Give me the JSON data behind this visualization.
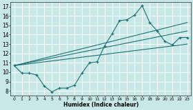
{
  "xlabel": "Humidex (Indice chaleur)",
  "xlim": [
    -0.5,
    23.5
  ],
  "ylim": [
    7.5,
    17.5
  ],
  "xticks": [
    0,
    1,
    2,
    3,
    4,
    5,
    6,
    7,
    8,
    9,
    10,
    11,
    12,
    13,
    14,
    15,
    16,
    17,
    18,
    19,
    20,
    21,
    22,
    23
  ],
  "yticks": [
    8,
    9,
    10,
    11,
    12,
    13,
    14,
    15,
    16,
    17
  ],
  "bg_color": "#c8e8e8",
  "grid_color": "#ffffff",
  "line_color": "#1a7070",
  "line_main": {
    "x": [
      0,
      1,
      2,
      3,
      4,
      5,
      6,
      7,
      8,
      9,
      10,
      11,
      12,
      13,
      14,
      15,
      16,
      17,
      18,
      19,
      20,
      21,
      22,
      23
    ],
    "y": [
      10.7,
      9.9,
      9.9,
      9.7,
      8.5,
      7.9,
      8.3,
      8.3,
      8.6,
      9.9,
      11.0,
      11.1,
      12.8,
      14.1,
      15.5,
      15.6,
      16.1,
      17.1,
      15.3,
      14.4,
      13.3,
      12.9,
      13.7,
      13.7
    ]
  },
  "straight_lines": [
    {
      "x": [
        0,
        23
      ],
      "y": [
        10.7,
        15.3
      ]
    },
    {
      "x": [
        0,
        23
      ],
      "y": [
        10.7,
        14.4
      ]
    },
    {
      "x": [
        0,
        23
      ],
      "y": [
        10.7,
        13.0
      ]
    }
  ]
}
